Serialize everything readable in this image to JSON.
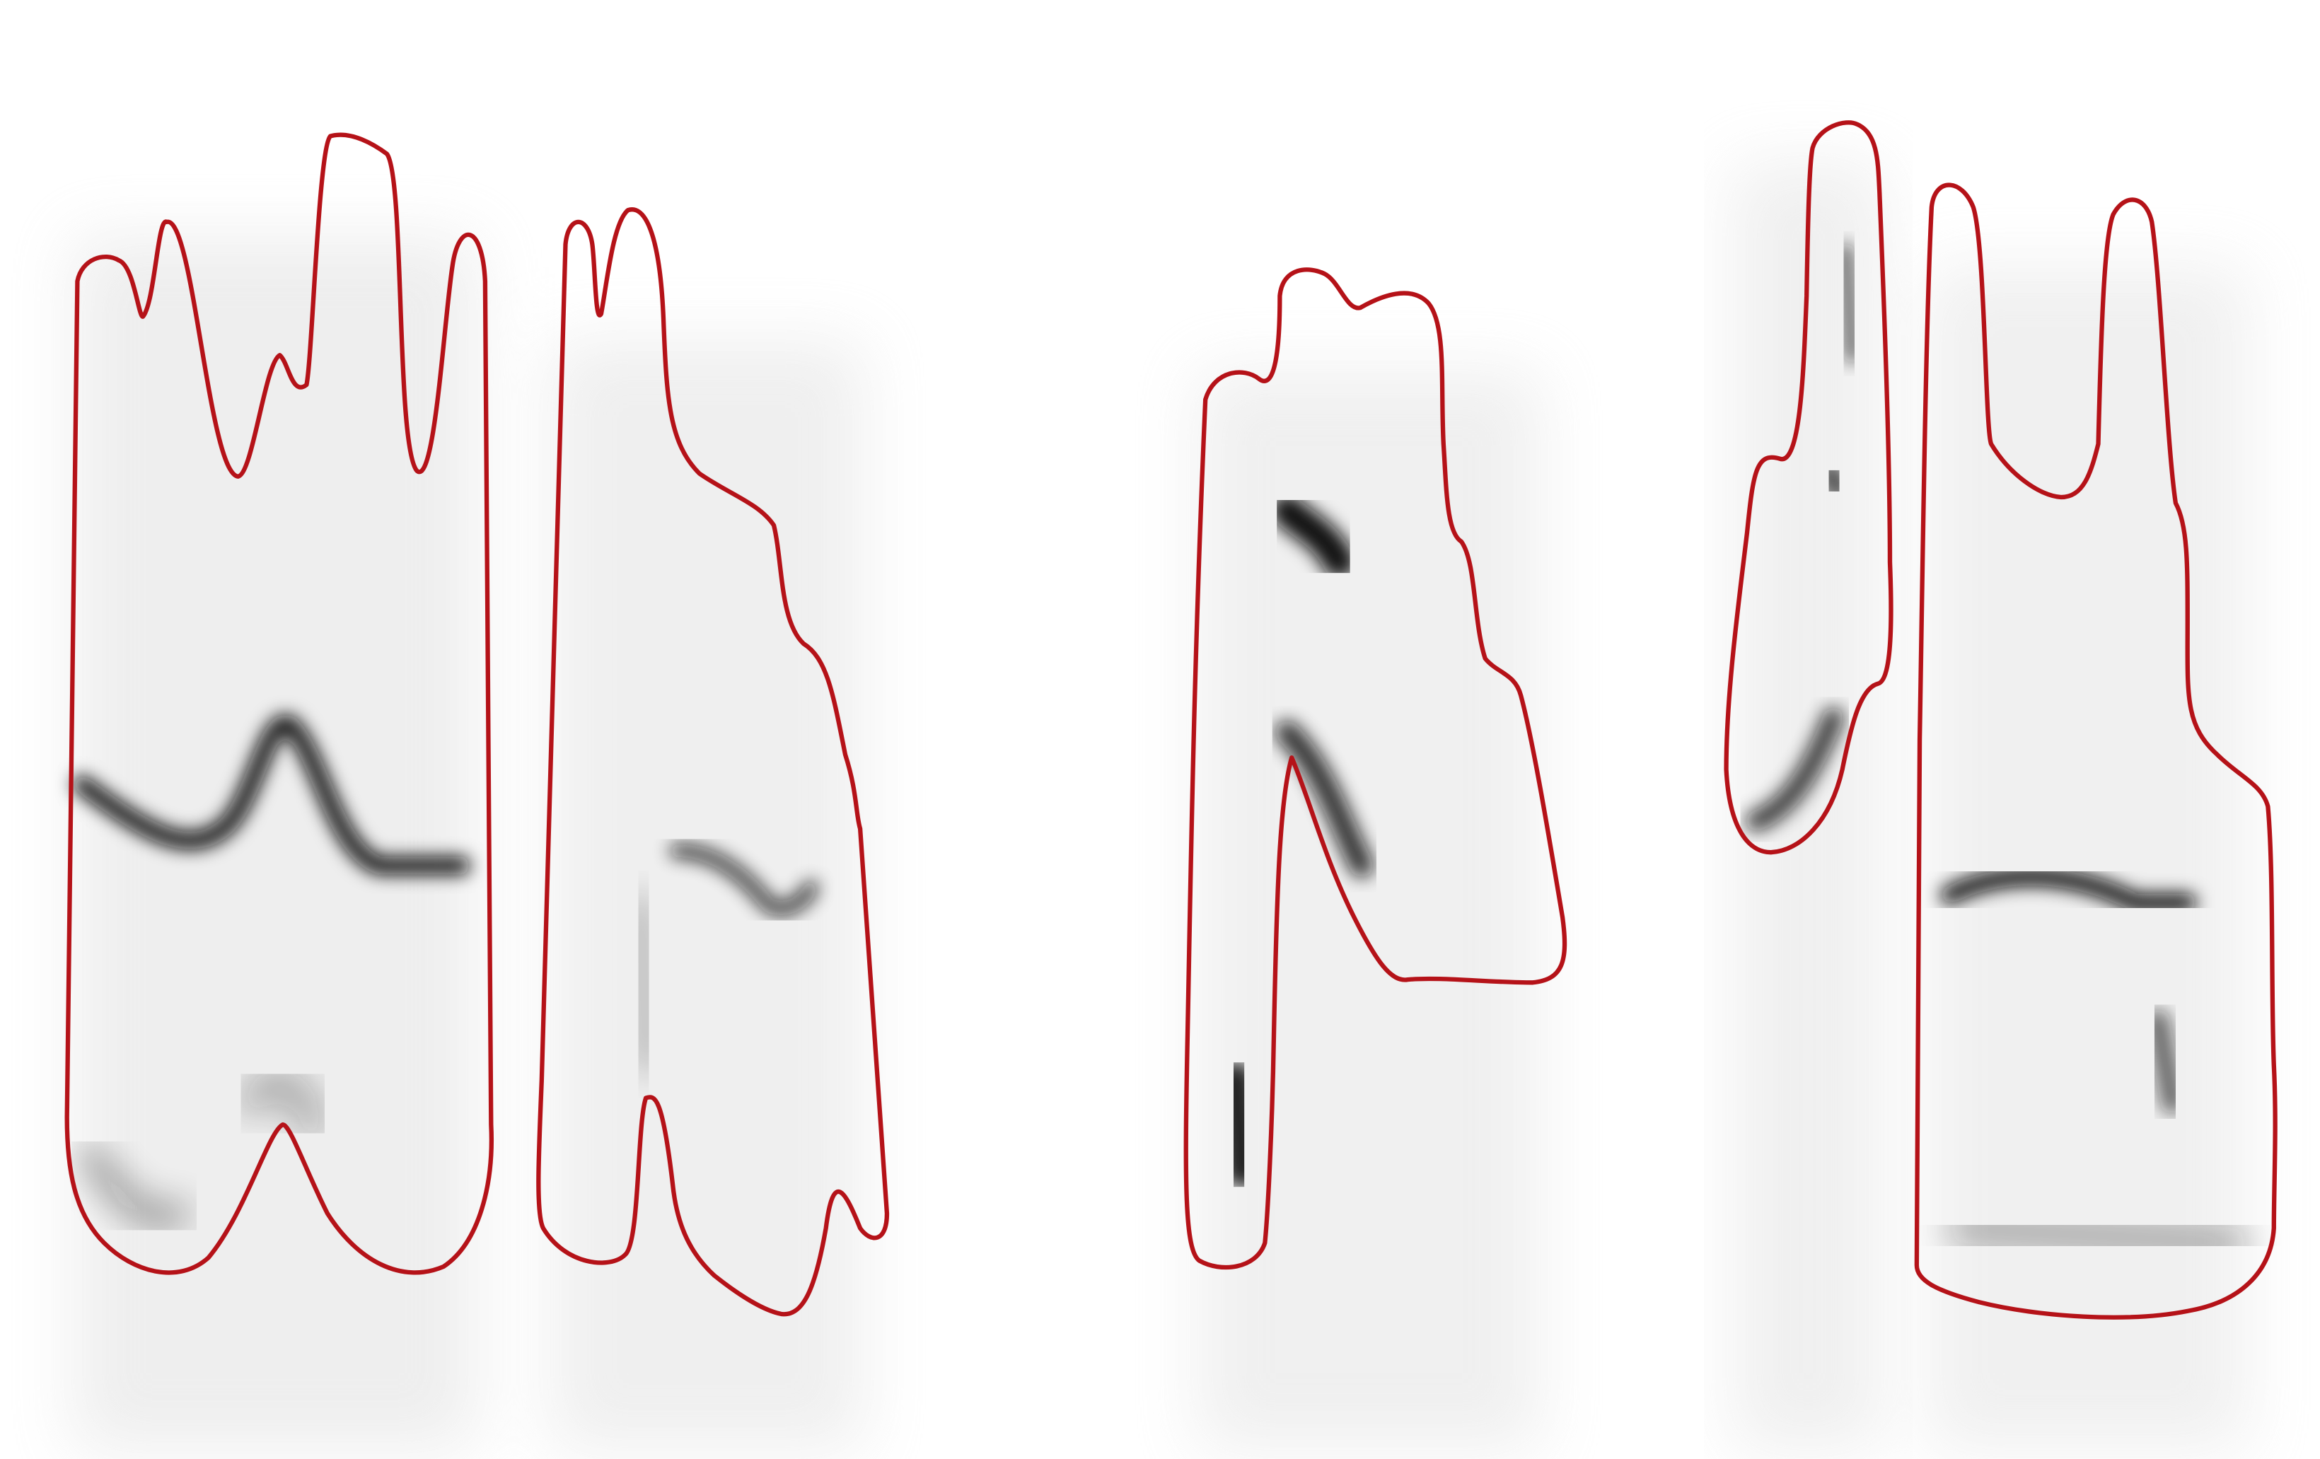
{
  "image": {
    "description_kind": "spectrogram-segments-with-outlines",
    "background_color": "#ffffff",
    "ink_color": "#111111",
    "outline_color": "#b51218"
  },
  "segments": [
    {
      "name": "segment-1"
    },
    {
      "name": "segment-2"
    },
    {
      "name": "segment-3"
    },
    {
      "name": "segment-4"
    },
    {
      "name": "segment-5"
    }
  ]
}
